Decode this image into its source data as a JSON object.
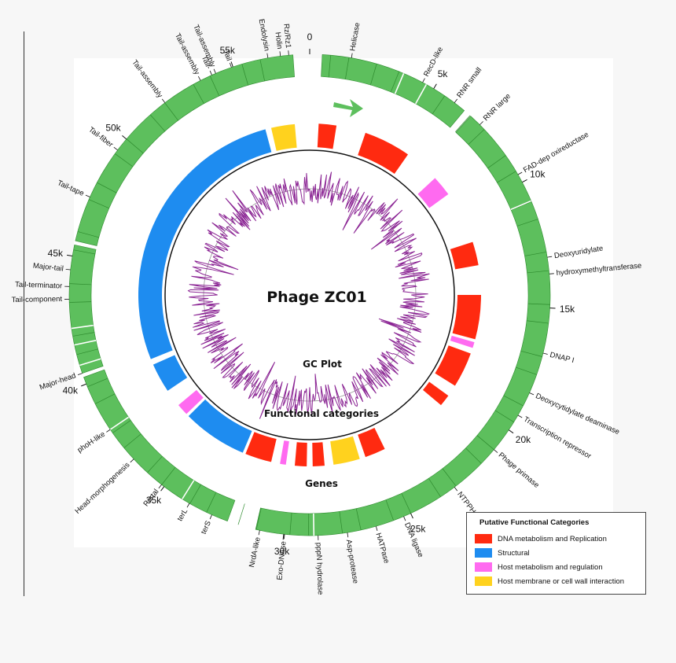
{
  "diagram": {
    "title": "Phage ZC01",
    "ring_labels": {
      "gc": "GC Plot",
      "functional": "Functional categories",
      "genes": "Genes"
    },
    "genome_length_kb": 58,
    "ticks": [
      {
        "kb": 0,
        "label": "0"
      },
      {
        "kb": 5,
        "label": "5k"
      },
      {
        "kb": 10,
        "label": "10k"
      },
      {
        "kb": 15,
        "label": "15k"
      },
      {
        "kb": 20,
        "label": "20k"
      },
      {
        "kb": 25,
        "label": "25k"
      },
      {
        "kb": 30,
        "label": "30k"
      },
      {
        "kb": 35,
        "label": "35k"
      },
      {
        "kb": 40,
        "label": "40k"
      },
      {
        "kb": 45,
        "label": "45k"
      },
      {
        "kb": 50,
        "label": "50k"
      },
      {
        "kb": 55,
        "label": "55k"
      }
    ],
    "gene_labels": [
      {
        "angle": 10,
        "text": "Helicase"
      },
      {
        "angle": 28,
        "text": "RecD-like"
      },
      {
        "angle": 37,
        "text": "RNR small"
      },
      {
        "angle": 45,
        "text": "RNR large"
      },
      {
        "angle": 60,
        "text": "FAD-dep oxireductase"
      },
      {
        "angle": 81,
        "text": "Deoxyuridylate"
      },
      {
        "angle": 85,
        "text": "hydroxymethyltransferase"
      },
      {
        "angle": 104,
        "text": "DNAP I"
      },
      {
        "angle": 114,
        "text": "Deoxycytidylate deaminase"
      },
      {
        "angle": 120,
        "text": "Transcription repressor"
      },
      {
        "angle": 130,
        "text": "Phage primase"
      },
      {
        "angle": 143,
        "text": "NTPPHase"
      },
      {
        "angle": 157,
        "text": "DNA ligase"
      },
      {
        "angle": 164,
        "text": "HATPase"
      },
      {
        "angle": 171,
        "text": "Asp-protease"
      },
      {
        "angle": 178,
        "text": "pppN hydrolase"
      },
      {
        "angle": 186,
        "text": "Exo-DNAse"
      },
      {
        "angle": 192,
        "text": "NrdA-like"
      },
      {
        "angle": 204,
        "text": "terS"
      },
      {
        "angle": 210,
        "text": "terL"
      },
      {
        "angle": 218,
        "text": "Portal"
      },
      {
        "angle": 227,
        "text": "Head-morphogenesis"
      },
      {
        "angle": 236,
        "text": "phoH-like"
      },
      {
        "angle": 251,
        "text": "Major-head"
      },
      {
        "angle": 269,
        "text": "Tail-component"
      },
      {
        "angle": 272,
        "text": "Tail-terminator"
      },
      {
        "angle": 276,
        "text": "Major-tail"
      },
      {
        "angle": 294,
        "text": "Tail-tape"
      },
      {
        "angle": 307,
        "text": "Tail-fiber"
      },
      {
        "angle": 323,
        "text": "Tail-assembly"
      },
      {
        "angle": 333,
        "text": "Tail-assembly"
      },
      {
        "angle": 336,
        "text": "Tail-"
      },
      {
        "angle": 337,
        "text": "Tail-assembly"
      },
      {
        "angle": 341,
        "text": "Tail"
      },
      {
        "angle": 350,
        "text": "Endolysin"
      },
      {
        "angle": 353,
        "text": "Holin"
      },
      {
        "angle": 355,
        "text": "Rz/Rz1"
      }
    ],
    "functional_segments": [
      {
        "start": 3,
        "end": 9,
        "category": "dna"
      },
      {
        "start": 19,
        "end": 35,
        "category": "dna"
      },
      {
        "start": 47,
        "end": 54,
        "category": "host_metabolism"
      },
      {
        "start": 72,
        "end": 80,
        "category": "dna"
      },
      {
        "start": 90,
        "end": 105,
        "category": "dna"
      },
      {
        "start": 106,
        "end": 108,
        "category": "host_metabolism"
      },
      {
        "start": 110,
        "end": 122,
        "category": "dna"
      },
      {
        "start": 126,
        "end": 130,
        "category": "dna"
      },
      {
        "start": 154,
        "end": 161,
        "category": "dna"
      },
      {
        "start": 163,
        "end": 172,
        "category": "membrane"
      },
      {
        "start": 175,
        "end": 179,
        "category": "dna"
      },
      {
        "start": 181,
        "end": 185,
        "category": "dna"
      },
      {
        "start": 188,
        "end": 190,
        "category": "host_metabolism"
      },
      {
        "start": 193,
        "end": 202,
        "category": "dna"
      },
      {
        "start": 203,
        "end": 225,
        "category": "structural"
      },
      {
        "start": 226,
        "end": 230,
        "category": "host_metabolism"
      },
      {
        "start": 236,
        "end": 246,
        "category": "structural"
      },
      {
        "start": 248,
        "end": 345,
        "category": "structural"
      },
      {
        "start": 347,
        "end": 355,
        "category": "membrane"
      }
    ],
    "colors": {
      "gene_ring": "#5dbf5d",
      "gene_ring_edge": "#2e8b2e",
      "gc_line": "#8b2594",
      "arrow": "#5dbf5d"
    }
  },
  "legend": {
    "title": "Putative Functional Categories",
    "items": [
      {
        "key": "dna",
        "label": "DNA metabolism and Replication",
        "color": "#ff2a10"
      },
      {
        "key": "structural",
        "label": "Structural",
        "color": "#1e8cf0"
      },
      {
        "key": "host_metabolism",
        "label": "Host metabolism and regulation",
        "color": "#ff6af0"
      },
      {
        "key": "membrane",
        "label": "Host membrane or cell wall interaction",
        "color": "#ffd21e"
      }
    ]
  }
}
